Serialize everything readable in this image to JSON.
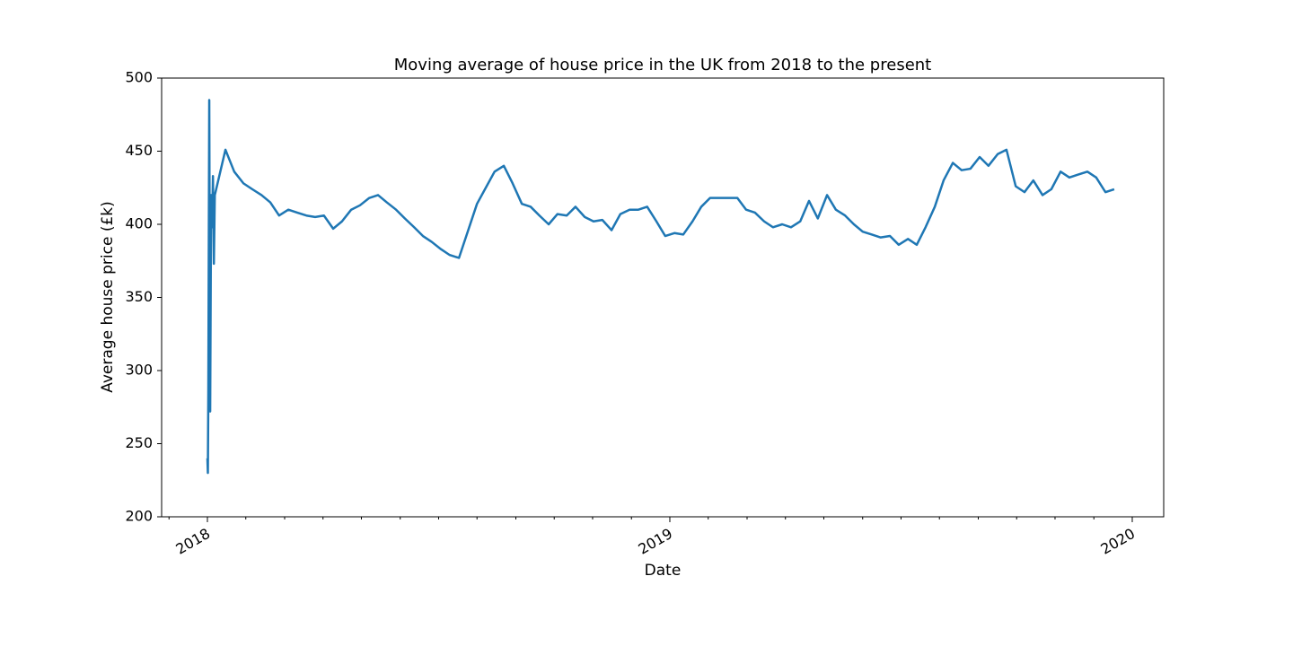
{
  "chart_data": {
    "type": "line",
    "title": "Moving average of house price in the UK from 2018 to the present",
    "xlabel": "Date",
    "ylabel": "Average house price (£k)",
    "color": "#1f77b4",
    "xlim": [
      2017.901,
      2020.068
    ],
    "xticks": [
      2018,
      2019,
      2020
    ],
    "xminorticks": [
      2017.917,
      2018.083,
      2018.167,
      2018.25,
      2018.333,
      2018.417,
      2018.5,
      2018.583,
      2018.667,
      2018.75,
      2018.833,
      2018.917,
      2019.083,
      2019.167,
      2019.25,
      2019.333,
      2019.417,
      2019.5,
      2019.583,
      2019.667,
      2019.75,
      2019.833,
      2019.917
    ],
    "ylim": [
      200,
      500
    ],
    "yticks": [
      200,
      250,
      300,
      350,
      400,
      450,
      500
    ],
    "grid": false,
    "x": [
      2018.0,
      2018.001,
      2018.002,
      2018.004,
      2018.006,
      2018.008,
      2018.01,
      2018.012,
      2018.014,
      2018.016,
      2018.019,
      2018.039,
      2018.058,
      2018.078,
      2018.097,
      2018.117,
      2018.136,
      2018.155,
      2018.175,
      2018.194,
      2018.214,
      2018.233,
      2018.252,
      2018.272,
      2018.291,
      2018.311,
      2018.33,
      2018.35,
      2018.369,
      2018.388,
      2018.408,
      2018.427,
      2018.447,
      2018.466,
      2018.485,
      2018.505,
      2018.524,
      2018.544,
      2018.563,
      2018.583,
      2018.602,
      2018.621,
      2018.641,
      2018.66,
      2018.68,
      2018.699,
      2018.718,
      2018.738,
      2018.757,
      2018.777,
      2018.796,
      2018.816,
      2018.835,
      2018.854,
      2018.874,
      2018.893,
      2018.913,
      2018.932,
      2018.951,
      2018.971,
      2018.99,
      2019.01,
      2019.029,
      2019.049,
      2019.068,
      2019.087,
      2019.107,
      2019.126,
      2019.146,
      2019.165,
      2019.184,
      2019.204,
      2019.223,
      2019.243,
      2019.262,
      2019.282,
      2019.301,
      2019.32,
      2019.34,
      2019.359,
      2019.379,
      2019.398,
      2019.417,
      2019.437,
      2019.456,
      2019.476,
      2019.495,
      2019.515,
      2019.534,
      2019.553,
      2019.573,
      2019.592,
      2019.612,
      2019.631,
      2019.65,
      2019.67,
      2019.689,
      2019.709,
      2019.728,
      2019.748,
      2019.767,
      2019.786,
      2019.806,
      2019.825,
      2019.845,
      2019.864,
      2019.883,
      2019.903,
      2019.922,
      2019.942,
      2019.961
    ],
    "values": [
      240,
      230,
      285,
      485,
      272,
      420,
      398,
      433,
      373,
      420,
      424,
      451,
      436,
      428,
      424,
      420,
      415,
      406,
      410,
      408,
      406,
      405,
      406,
      397,
      402,
      410,
      413,
      418,
      420,
      415,
      410,
      404,
      398,
      392,
      388,
      383,
      379,
      377,
      395,
      414,
      425,
      436,
      440,
      428,
      414,
      412,
      406,
      400,
      407,
      406,
      412,
      405,
      402,
      403,
      396,
      407,
      410,
      410,
      412,
      402,
      392,
      394,
      393,
      402,
      412,
      418,
      418,
      418,
      418,
      410,
      408,
      402,
      398,
      400,
      398,
      402,
      416,
      404,
      420,
      410,
      406,
      400,
      395,
      393,
      391,
      392,
      386,
      390,
      386,
      398,
      412,
      430,
      442,
      437,
      438,
      446,
      440,
      448,
      451,
      426,
      422,
      430,
      420,
      424,
      436,
      432,
      434,
      436,
      432,
      422,
      424
    ]
  }
}
